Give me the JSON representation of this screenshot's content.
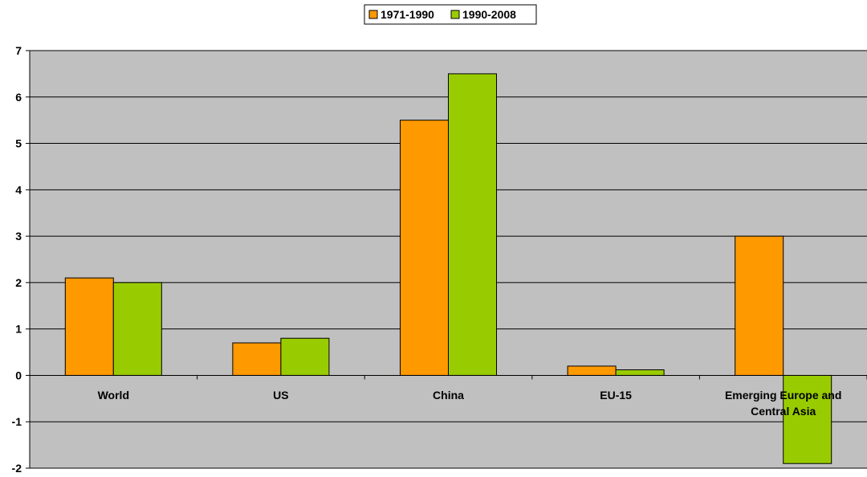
{
  "chart_data": {
    "type": "bar",
    "categories": [
      "World",
      "US",
      "China",
      "EU-15",
      "Emerging Europe and Central Asia"
    ],
    "category_label_lines": [
      [
        "World"
      ],
      [
        "US"
      ],
      [
        "China"
      ],
      [
        "EU-15"
      ],
      [
        "Emerging Europe and",
        "Central Asia"
      ]
    ],
    "series": [
      {
        "name": "1971-1990",
        "color": "#ff9900",
        "values": [
          2.1,
          0.7,
          5.5,
          0.2,
          3.0
        ]
      },
      {
        "name": "1990-2008",
        "color": "#99cc00",
        "values": [
          2.0,
          0.8,
          6.5,
          0.12,
          -1.9
        ]
      }
    ],
    "title": "",
    "xlabel": "",
    "ylabel": "",
    "ylim": [
      -2,
      7
    ],
    "yticks": [
      -2,
      -1,
      0,
      1,
      2,
      3,
      4,
      5,
      6,
      7
    ],
    "grid": true,
    "legend_position": "top-center",
    "plot_background": "#c0c0c0"
  }
}
